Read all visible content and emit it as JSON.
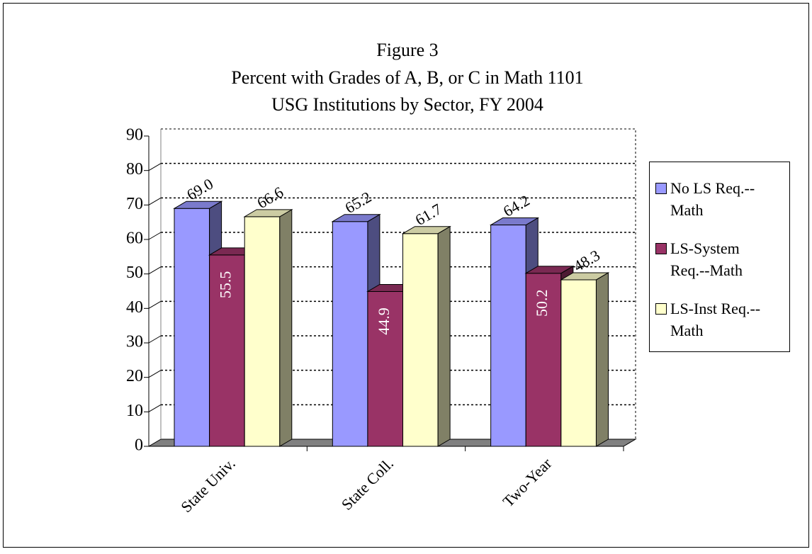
{
  "chart_data": {
    "type": "bar3d",
    "title": [
      "Figure 3",
      "Percent with Grades of A, B, or C in Math 1101",
      "USG Institutions by Sector, FY 2004"
    ],
    "categories": [
      "State Univ.",
      "State Coll.",
      "Two-Year"
    ],
    "series": [
      {
        "name": "No LS Req.--Math",
        "color": "#9999ff",
        "values": [
          69.0,
          65.2,
          64.2
        ],
        "value_labels": [
          "69.0",
          "65.2",
          "64.2"
        ]
      },
      {
        "name": "LS-System Req.--Math",
        "color": "#993366",
        "values": [
          55.5,
          44.9,
          50.2
        ],
        "value_labels": [
          "55.5",
          "44.9",
          "50.2"
        ]
      },
      {
        "name": "LS-Inst Req.--Math",
        "color": "#ffffcc",
        "values": [
          66.6,
          61.7,
          48.3
        ],
        "value_labels": [
          "66.6",
          "61.7",
          "48.3"
        ]
      }
    ],
    "ylim": [
      0,
      90
    ],
    "yticks": [
      0,
      10,
      20,
      30,
      40,
      50,
      60,
      70,
      80,
      90
    ],
    "grid": true,
    "legend": "right"
  }
}
